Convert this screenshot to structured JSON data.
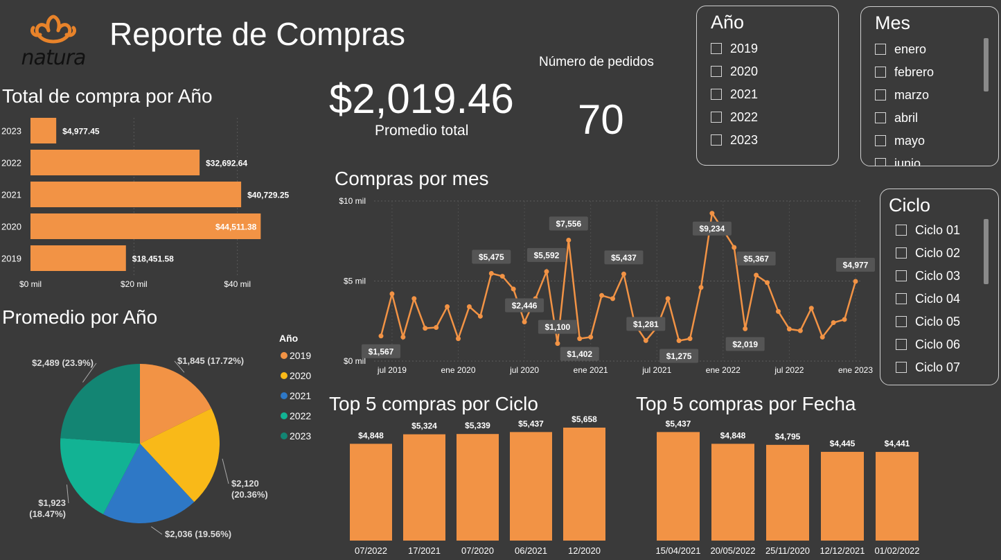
{
  "header": {
    "title": "Reporte de Compras",
    "logo_text": "natura"
  },
  "colors": {
    "bar": "#f29345",
    "bg": "#3a3a3a",
    "pie": [
      "#f29345",
      "#f9b918",
      "#2e78c6",
      "#12b394",
      "#138573"
    ],
    "label_box": "#555555"
  },
  "kpis": {
    "promedio_value": "$2,019.46",
    "promedio_label": "Promedio total",
    "pedidos_label": "Número de pedidos",
    "pedidos_value": "70"
  },
  "slicer_anio": {
    "title": "Año",
    "items": [
      "2019",
      "2020",
      "2021",
      "2022",
      "2023"
    ]
  },
  "slicer_mes": {
    "title": "Mes",
    "items": [
      "enero",
      "febrero",
      "marzo",
      "abril",
      "mayo",
      "junio"
    ]
  },
  "slicer_ciclo": {
    "title": "Ciclo",
    "items": [
      "Ciclo 01",
      "Ciclo 02",
      "Ciclo 03",
      "Ciclo 04",
      "Ciclo 05",
      "Ciclo 06",
      "Ciclo 07"
    ]
  },
  "chart_data": [
    {
      "id": "total_anio",
      "type": "bar",
      "orientation": "horizontal",
      "title": "Total de compra por Año",
      "categories": [
        "2023",
        "2022",
        "2021",
        "2020",
        "2019"
      ],
      "values": [
        4977.45,
        32692.64,
        40729.25,
        44511.38,
        18451.58
      ],
      "labels": [
        "$4,977.45",
        "$32,692.64",
        "$40,729.25",
        "$44,511.38",
        "$18,451.58"
      ],
      "xlim": [
        0,
        45000
      ],
      "xticks": [
        {
          "v": 0,
          "t": "$0 mil"
        },
        {
          "v": 20000,
          "t": "$20 mil"
        },
        {
          "v": 40000,
          "t": "$40 mil"
        }
      ]
    },
    {
      "id": "promedio_anio",
      "type": "pie",
      "title": "Promedio por Año",
      "legend_title": "Año",
      "categories": [
        "2019",
        "2020",
        "2021",
        "2022",
        "2023"
      ],
      "values": [
        1845,
        2120,
        2036,
        1923,
        2489
      ],
      "labels": [
        "$1,845 (17.72%)",
        "$2,120 (20.36%)",
        "$2,036 (19.56%)",
        "$1,923 (18.47%)",
        "$2,489 (23.9%)"
      ]
    },
    {
      "id": "compras_mes",
      "type": "line",
      "title": "Compras por mes",
      "values": [
        1567,
        4200,
        1500,
        3900,
        2050,
        2100,
        3400,
        1400,
        3400,
        2800,
        5475,
        5300,
        4500,
        2446,
        3900,
        5592,
        1100,
        7556,
        1402,
        1500,
        4100,
        3900,
        5437,
        2300,
        1281,
        2100,
        3900,
        1275,
        1400,
        4600,
        9234,
        8200,
        7100,
        2019,
        5367,
        4900,
        3100,
        2000,
        1900,
        3300,
        1500,
        2400,
        2600,
        4977
      ],
      "ylim": [
        0,
        10000
      ],
      "yticks": [
        {
          "v": 0,
          "t": "$0 mil"
        },
        {
          "v": 5000,
          "t": "$5 mil"
        },
        {
          "v": 10000,
          "t": "$10 mil"
        }
      ],
      "xticks": [
        {
          "i": 1,
          "t": "jul 2019"
        },
        {
          "i": 7,
          "t": "ene 2020"
        },
        {
          "i": 13,
          "t": "jul 2020"
        },
        {
          "i": 19,
          "t": "ene 2021"
        },
        {
          "i": 25,
          "t": "jul 2021"
        },
        {
          "i": 31,
          "t": "ene 2022"
        },
        {
          "i": 37,
          "t": "jul 2022"
        },
        {
          "i": 43,
          "t": "ene 2023"
        }
      ],
      "point_labels": [
        {
          "i": 0,
          "t": "$1,567",
          "pos": "below"
        },
        {
          "i": 10,
          "t": "$5,475",
          "pos": "above"
        },
        {
          "i": 13,
          "t": "$2,446",
          "pos": "above"
        },
        {
          "i": 15,
          "t": "$5,592",
          "pos": "above"
        },
        {
          "i": 16,
          "t": "$1,100",
          "pos": "above"
        },
        {
          "i": 17,
          "t": "$7,556",
          "pos": "above"
        },
        {
          "i": 18,
          "t": "$1,402",
          "pos": "below"
        },
        {
          "i": 22,
          "t": "$5,437",
          "pos": "above"
        },
        {
          "i": 24,
          "t": "$1,281",
          "pos": "above"
        },
        {
          "i": 27,
          "t": "$1,275",
          "pos": "below"
        },
        {
          "i": 30,
          "t": "$9,234",
          "pos": "below"
        },
        {
          "i": 33,
          "t": "$2,019",
          "pos": "below"
        },
        {
          "i": 34,
          "t": "$5,367",
          "pos": "above"
        },
        {
          "i": 43,
          "t": "$4,977",
          "pos": "above"
        }
      ]
    },
    {
      "id": "top5_ciclo",
      "type": "bar",
      "title": "Top 5 compras por Ciclo",
      "categories": [
        "07/2022",
        "17/2021",
        "07/2020",
        "06/2021",
        "12/2020"
      ],
      "values": [
        4848,
        5324,
        5339,
        5437,
        5658
      ],
      "labels": [
        "$4,848",
        "$5,324",
        "$5,339",
        "$5,437",
        "$5,658"
      ],
      "ylim": [
        0,
        5658
      ]
    },
    {
      "id": "top5_fecha",
      "type": "bar",
      "title": "Top 5 compras por Fecha",
      "categories": [
        "15/04/2021",
        "20/05/2022",
        "25/11/2020",
        "12/12/2021",
        "01/02/2022"
      ],
      "values": [
        5437,
        4848,
        4795,
        4445,
        4441
      ],
      "labels": [
        "$5,437",
        "$4,848",
        "$4,795",
        "$4,445",
        "$4,441"
      ],
      "ylim": [
        0,
        5658
      ]
    }
  ]
}
